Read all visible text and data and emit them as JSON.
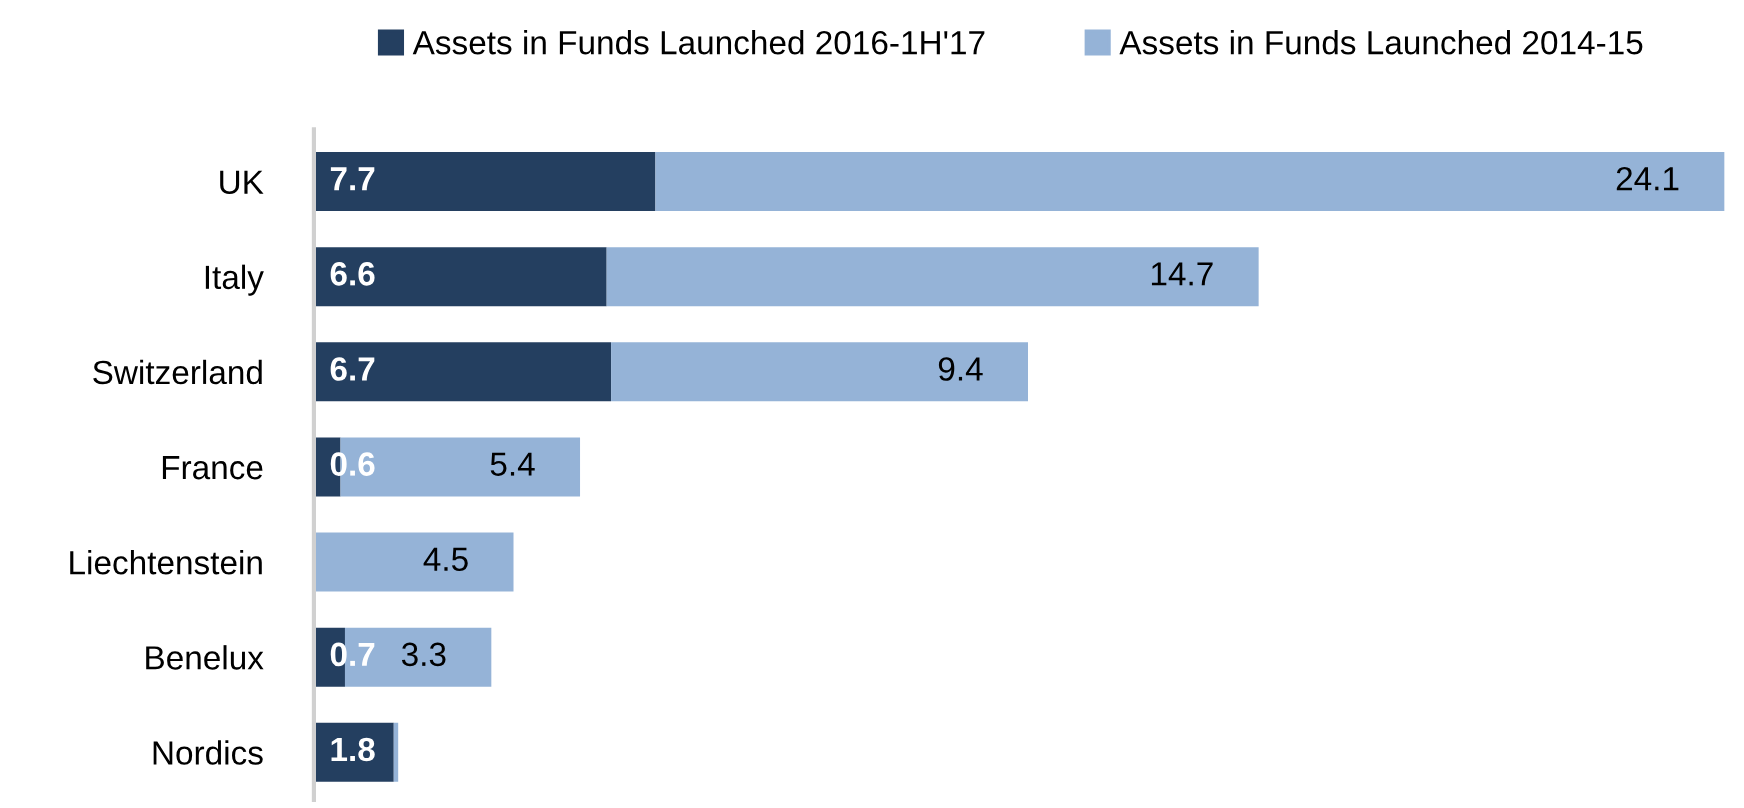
{
  "chart_data": {
    "type": "bar",
    "orientation": "horizontal",
    "stacked": true,
    "legend": "top",
    "grid": false,
    "categories": [
      "UK",
      "Italy",
      "Switzerland",
      "France",
      "Liechtenstein",
      "Benelux",
      "Nordics"
    ],
    "series": [
      {
        "name": "Assets in Funds Launched 2016-1H'17",
        "color": "#243f60",
        "values": [
          7.7,
          6.6,
          6.7,
          0.6,
          null,
          0.7,
          1.8
        ],
        "value_labels": [
          "7.7",
          "6.6",
          "6.7",
          "0.6",
          null,
          "0.7",
          "1.8"
        ]
      },
      {
        "name": "Assets in Funds Launched 2014-15",
        "color": "#95b3d7",
        "values": [
          24.1,
          14.7,
          9.4,
          5.4,
          4.5,
          3.3,
          0.1
        ],
        "value_labels": [
          "24.1",
          "14.7",
          "9.4",
          "5.4",
          "4.5",
          "3.3",
          null
        ]
      }
    ]
  }
}
